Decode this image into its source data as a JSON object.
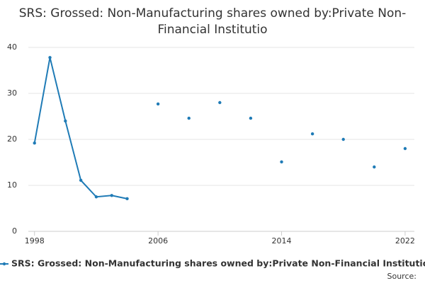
{
  "chart_data": {
    "type": "line",
    "title": "SRS: Grossed: Non-Manufacturing shares owned by:Private Non-Financial Institutio",
    "source": "Source:",
    "x": [
      1998,
      1999,
      2000,
      2001,
      2002,
      2003,
      2004,
      2005,
      2006,
      2007,
      2008,
      2009,
      2010,
      2011,
      2012,
      2013,
      2014,
      2015,
      2016,
      2017,
      2018,
      2019,
      2020,
      2021,
      2022
    ],
    "series": [
      {
        "name": "SRS: Grossed: Non-Manufacturing shares owned by:Private Non-Financial Institutio",
        "color": "#1f7bb6",
        "values": [
          19.2,
          37.8,
          24,
          11.1,
          7.5,
          7.8,
          7.1,
          null,
          27.7,
          null,
          24.6,
          null,
          28,
          null,
          24.6,
          null,
          15.1,
          null,
          21.2,
          null,
          20,
          null,
          14,
          null,
          18
        ]
      }
    ],
    "xlim": [
      1997.6,
      2022.6
    ],
    "xticks": [
      1998,
      2006,
      2014,
      2022
    ],
    "ylim": [
      0,
      40
    ],
    "yticks": [
      0,
      10,
      20,
      30,
      40
    ],
    "grid": true
  }
}
